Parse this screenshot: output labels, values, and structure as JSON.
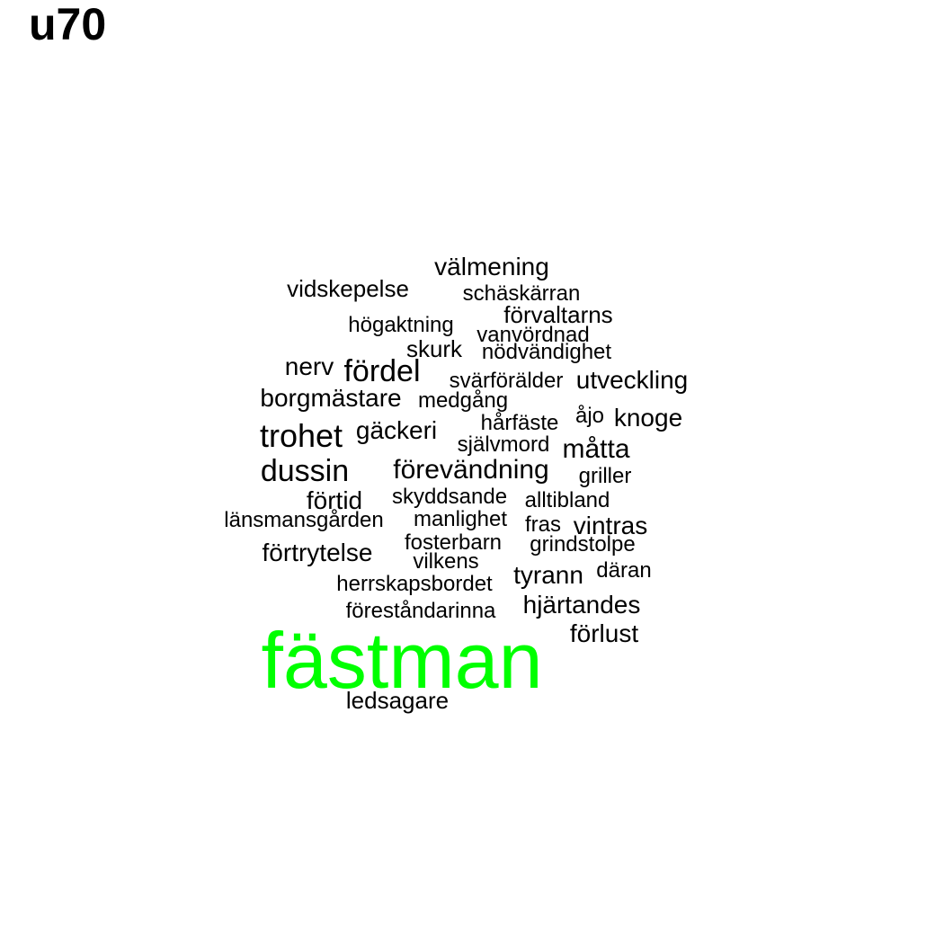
{
  "title": "u70",
  "colors": {
    "text": "#000000",
    "highlight": "#00ff00",
    "background": "#ffffff"
  },
  "words": [
    {
      "text": "välmening",
      "weight": 2,
      "highlight": false
    },
    {
      "text": "vidskepelse",
      "weight": 2,
      "highlight": false
    },
    {
      "text": "schäskärran",
      "weight": 1,
      "highlight": false
    },
    {
      "text": "förvaltarns",
      "weight": 2,
      "highlight": false
    },
    {
      "text": "högaktning",
      "weight": 1,
      "highlight": false
    },
    {
      "text": "vanvördnad",
      "weight": 1,
      "highlight": false
    },
    {
      "text": "skurk",
      "weight": 2,
      "highlight": false
    },
    {
      "text": "nödvändighet",
      "weight": 1,
      "highlight": false
    },
    {
      "text": "nerv",
      "weight": 2,
      "highlight": false
    },
    {
      "text": "fördel",
      "weight": 3,
      "highlight": false
    },
    {
      "text": "svärförälder",
      "weight": 1,
      "highlight": false
    },
    {
      "text": "utveckling",
      "weight": 2,
      "highlight": false
    },
    {
      "text": "borgmästare",
      "weight": 2,
      "highlight": false
    },
    {
      "text": "medgång",
      "weight": 1,
      "highlight": false
    },
    {
      "text": "åjo",
      "weight": 1,
      "highlight": false
    },
    {
      "text": "knoge",
      "weight": 2,
      "highlight": false
    },
    {
      "text": "hårfäste",
      "weight": 1,
      "highlight": false
    },
    {
      "text": "trohet",
      "weight": 3,
      "highlight": false
    },
    {
      "text": "gäckeri",
      "weight": 2,
      "highlight": false
    },
    {
      "text": "självmord",
      "weight": 1,
      "highlight": false
    },
    {
      "text": "måtta",
      "weight": 2,
      "highlight": false
    },
    {
      "text": "dussin",
      "weight": 3,
      "highlight": false
    },
    {
      "text": "förevändning",
      "weight": 2,
      "highlight": false
    },
    {
      "text": "griller",
      "weight": 1,
      "highlight": false
    },
    {
      "text": "förtid",
      "weight": 2,
      "highlight": false
    },
    {
      "text": "skyddsande",
      "weight": 1,
      "highlight": false
    },
    {
      "text": "alltibland",
      "weight": 1,
      "highlight": false
    },
    {
      "text": "länsmansgården",
      "weight": 1,
      "highlight": false
    },
    {
      "text": "manlighet",
      "weight": 1,
      "highlight": false
    },
    {
      "text": "fras",
      "weight": 1,
      "highlight": false
    },
    {
      "text": "vintras",
      "weight": 2,
      "highlight": false
    },
    {
      "text": "fosterbarn",
      "weight": 1,
      "highlight": false
    },
    {
      "text": "grindstolpe",
      "weight": 1,
      "highlight": false
    },
    {
      "text": "förtrytelse",
      "weight": 2,
      "highlight": false
    },
    {
      "text": "vilkens",
      "weight": 1,
      "highlight": false
    },
    {
      "text": "tyrann",
      "weight": 2,
      "highlight": false
    },
    {
      "text": "däran",
      "weight": 1,
      "highlight": false
    },
    {
      "text": "herrskapsbordet",
      "weight": 1,
      "highlight": false
    },
    {
      "text": "hjärtandes",
      "weight": 2,
      "highlight": false
    },
    {
      "text": "föreståndarinna",
      "weight": 1,
      "highlight": false
    },
    {
      "text": "förlust",
      "weight": 2,
      "highlight": false
    },
    {
      "text": "fästman",
      "weight": 10,
      "highlight": true
    },
    {
      "text": "ledsagare",
      "weight": 1,
      "highlight": false
    }
  ]
}
